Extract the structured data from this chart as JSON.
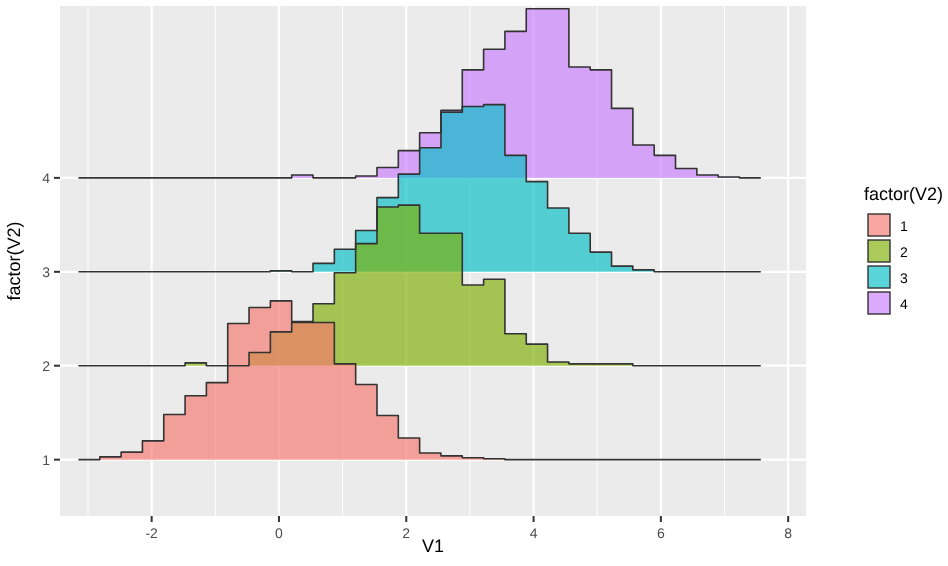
{
  "chart_data": {
    "type": "area",
    "xlabel": "V1",
    "ylabel": "factor(V2)",
    "legend_title": "factor(V2)",
    "legend": "right",
    "grid": true,
    "xlim": [
      -3.44,
      8.28
    ],
    "xticks": [
      -2,
      0,
      2,
      4,
      6,
      8
    ],
    "ylim": [
      0.4,
      5.83
    ],
    "yticks": [
      1,
      2,
      3,
      4
    ],
    "series": [
      {
        "name": "1",
        "color": "#f8766d",
        "x": [
          -3.15,
          -2.815,
          -2.815,
          -2.48,
          -2.48,
          -2.145,
          -2.145,
          -1.81,
          -1.81,
          -1.475,
          -1.475,
          -1.14,
          -1.14,
          -0.805,
          -0.805,
          -0.47,
          -0.47,
          -0.135,
          -0.135,
          0.2,
          0.2,
          0.535,
          0.535,
          0.87,
          0.87,
          1.205,
          1.205,
          1.54,
          1.54,
          1.875,
          1.875,
          2.21,
          2.21,
          2.545,
          2.545,
          2.88,
          2.88,
          3.215,
          3.215,
          3.55,
          3.55,
          7.57
        ],
        "values": [
          1,
          1,
          1.03,
          1.03,
          1.08,
          1.08,
          1.2,
          1.2,
          1.48,
          1.48,
          1.68,
          1.68,
          1.82,
          1.82,
          2.45,
          2.45,
          2.62,
          2.62,
          2.69,
          2.69,
          2.47,
          2.47,
          2.46,
          2.46,
          2.02,
          2.02,
          1.8,
          1.8,
          1.47,
          1.47,
          1.23,
          1.23,
          1.07,
          1.07,
          1.04,
          1.04,
          1.02,
          1.02,
          1.01,
          1.01,
          1,
          1
        ]
      },
      {
        "name": "2",
        "color": "#7cae00",
        "x": [
          -3.15,
          -1.475,
          -1.475,
          -1.14,
          -1.14,
          -0.47,
          -0.47,
          -0.135,
          -0.135,
          0.2,
          0.2,
          0.535,
          0.535,
          0.87,
          0.87,
          1.205,
          1.205,
          1.54,
          1.54,
          1.875,
          1.875,
          2.21,
          2.21,
          2.88,
          2.88,
          3.215,
          3.215,
          3.55,
          3.55,
          3.885,
          3.885,
          4.22,
          4.22,
          4.555,
          4.555,
          5.56,
          5.56,
          7.57
        ],
        "values": [
          2,
          2,
          2.03,
          2.03,
          2,
          2,
          2.14,
          2.14,
          2.36,
          2.36,
          2.46,
          2.46,
          2.66,
          2.66,
          2.99,
          2.99,
          3.3,
          3.3,
          3.69,
          3.69,
          3.71,
          3.71,
          3.41,
          3.41,
          2.86,
          2.86,
          2.92,
          2.92,
          2.34,
          2.34,
          2.23,
          2.23,
          2.04,
          2.04,
          2.02,
          2.02,
          2,
          2
        ]
      },
      {
        "name": "3",
        "color": "#00bfc4",
        "x": [
          -3.15,
          -0.135,
          -0.135,
          0.2,
          0.2,
          0.535,
          0.535,
          0.87,
          0.87,
          1.205,
          1.205,
          1.54,
          1.54,
          1.875,
          1.875,
          2.21,
          2.21,
          2.545,
          2.545,
          2.88,
          2.88,
          3.215,
          3.215,
          3.55,
          3.55,
          3.885,
          3.885,
          4.22,
          4.22,
          4.555,
          4.555,
          4.89,
          4.89,
          5.225,
          5.225,
          5.56,
          5.56,
          5.895,
          5.895,
          7.57
        ],
        "values": [
          3,
          3,
          3.01,
          3.01,
          3,
          3,
          3.09,
          3.09,
          3.24,
          3.24,
          3.44,
          3.44,
          3.79,
          3.79,
          4.04,
          4.04,
          4.32,
          4.32,
          4.7,
          4.7,
          4.76,
          4.76,
          4.78,
          4.78,
          4.24,
          4.24,
          3.96,
          3.96,
          3.68,
          3.68,
          3.41,
          3.41,
          3.21,
          3.21,
          3.06,
          3.06,
          3.02,
          3.02,
          3,
          3
        ]
      },
      {
        "name": "4",
        "color": "#c77cff",
        "x": [
          -3.15,
          0.2,
          0.2,
          0.535,
          0.535,
          1.205,
          1.205,
          1.54,
          1.54,
          1.875,
          1.875,
          2.21,
          2.21,
          2.545,
          2.545,
          2.88,
          2.88,
          3.215,
          3.215,
          3.55,
          3.55,
          3.885,
          3.885,
          4.555,
          4.555,
          4.89,
          4.89,
          5.225,
          5.225,
          5.56,
          5.56,
          5.895,
          5.895,
          6.23,
          6.23,
          6.565,
          6.565,
          6.9,
          6.9,
          7.235,
          7.235,
          7.57
        ],
        "values": [
          4,
          4,
          4.03,
          4.03,
          4,
          4,
          4.02,
          4.02,
          4.11,
          4.11,
          4.29,
          4.29,
          4.48,
          4.48,
          4.72,
          4.72,
          5.15,
          5.15,
          5.37,
          5.37,
          5.56,
          5.56,
          5.8,
          5.8,
          5.18,
          5.18,
          5.15,
          5.15,
          4.74,
          4.74,
          4.35,
          4.35,
          4.24,
          4.24,
          4.1,
          4.1,
          4.03,
          4.03,
          4.01,
          4.01,
          4,
          4
        ]
      }
    ]
  }
}
